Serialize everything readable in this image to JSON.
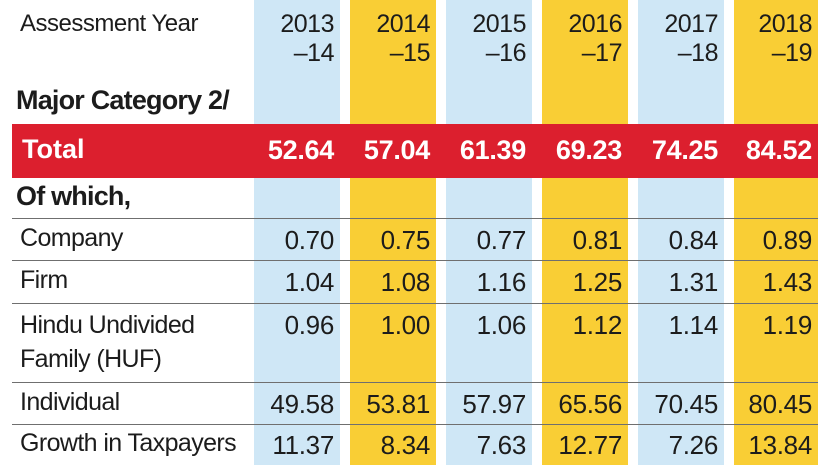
{
  "chart_data": {
    "type": "table",
    "header_label": "Assessment Year",
    "years": [
      "2013\n–14",
      "2014\n–15",
      "2015\n–16",
      "2016\n–17",
      "2017\n–18",
      "2018\n–19"
    ],
    "year_parts": [
      [
        "2013",
        "–14"
      ],
      [
        "2014",
        "–15"
      ],
      [
        "2015",
        "–16"
      ],
      [
        "2016",
        "–17"
      ],
      [
        "2017",
        "–18"
      ],
      [
        "2018",
        "–19"
      ]
    ],
    "section_heading": "Major Category 2/",
    "total": {
      "label": "Total",
      "values": [
        "52.64",
        "57.04",
        "61.39",
        "69.23",
        "74.25",
        "84.52"
      ]
    },
    "subheading": "Of which,",
    "rows": [
      {
        "label": "Company",
        "values": [
          "0.70",
          "0.75",
          "0.77",
          "0.81",
          "0.84",
          "0.89"
        ]
      },
      {
        "label": "Firm",
        "values": [
          "1.04",
          "1.08",
          "1.16",
          "1.25",
          "1.31",
          "1.43"
        ]
      },
      {
        "label": "Hindu Undivided\nFamily (HUF)",
        "label_lines": [
          "Hindu Undivided",
          "Family (HUF)"
        ],
        "values": [
          "0.96",
          "1.00",
          "1.06",
          "1.12",
          "1.14",
          "1.19"
        ]
      },
      {
        "label": "Individual",
        "values": [
          "49.58",
          "53.81",
          "57.97",
          "65.56",
          "70.45",
          "80.45"
        ]
      },
      {
        "label": "Growth in Taxpayers",
        "values": [
          "11.37",
          "8.34",
          "7.63",
          "12.77",
          "7.26",
          "13.84"
        ]
      }
    ],
    "colors": {
      "blue_column": "#cfe7f6",
      "gold_column": "#f9ce35",
      "total_bar": "#dc1f2e"
    }
  }
}
